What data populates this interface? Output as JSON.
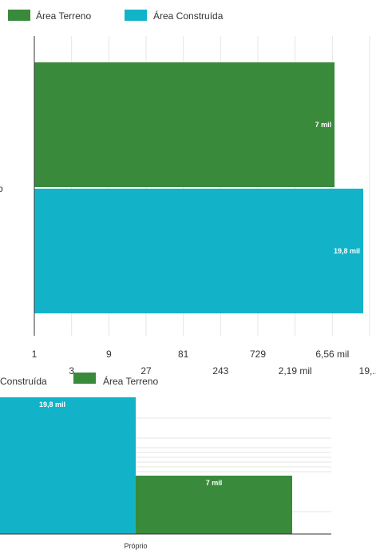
{
  "colors": {
    "terreno": "#3a8a3c",
    "construida": "#12b3c8",
    "grid": "#e6e6e6",
    "axis": "#333333"
  },
  "chart_data": [
    {
      "type": "bar",
      "orientation": "horizontal",
      "legend": [
        {
          "name": "Área Terreno",
          "color": "#3a8a3c"
        },
        {
          "name": "Área Construída",
          "color": "#12b3c8"
        }
      ],
      "legend_position": "top-left",
      "x_scale": "log3",
      "xlim": [
        1,
        19683
      ],
      "x_ticks": [
        "1",
        "3",
        "9",
        "27",
        "81",
        "243",
        "729",
        "2,19 mil",
        "6,56 mil",
        "19,..."
      ],
      "category_label": "o",
      "series": [
        {
          "name": "Área Terreno",
          "value": 7000,
          "label": "7 mil"
        },
        {
          "name": "Área Construída",
          "value": 19800,
          "label": "19,8 mil"
        }
      ],
      "grid": true
    },
    {
      "type": "bar",
      "orientation": "vertical",
      "legend": [
        {
          "name": "Construída",
          "color": "#12b3c8"
        },
        {
          "name": "Área Terreno",
          "color": "#3a8a3c"
        }
      ],
      "legend_position": "top-left",
      "categories": [
        "Próprio"
      ],
      "series": [
        {
          "name": "Área Construída",
          "value": 19800,
          "label": "19,8 mil"
        },
        {
          "name": "Área Terreno",
          "value": 7000,
          "label": "7 mil"
        }
      ],
      "grid": true
    }
  ]
}
